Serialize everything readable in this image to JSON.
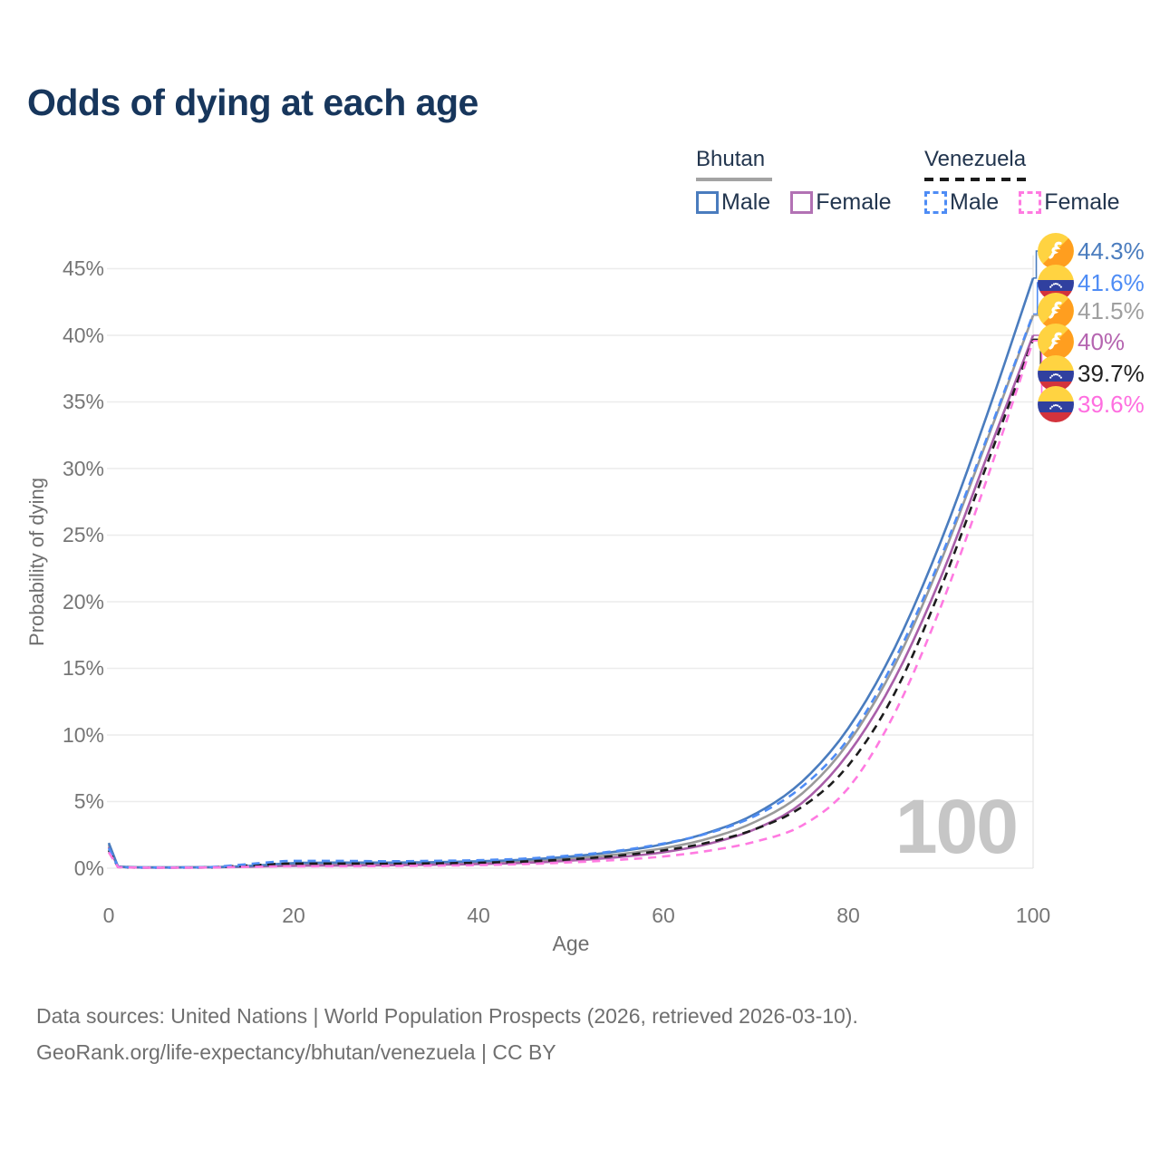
{
  "title": "Odds of dying at each age",
  "legend": {
    "groups": [
      {
        "country": "Bhutan",
        "line_style": "solid",
        "line_color": "#a3a3a3",
        "entries": [
          {
            "label": "Male",
            "color": "#4a7cbe"
          },
          {
            "label": "Female",
            "color": "#b272b4"
          }
        ]
      },
      {
        "country": "Venezuela",
        "line_style": "dashed",
        "line_color": "#1b1b1b",
        "entries": [
          {
            "label": "Male",
            "color": "#4e8cf5"
          },
          {
            "label": "Female",
            "color": "#ff7ae1"
          }
        ]
      }
    ]
  },
  "axes": {
    "y_label": "Probability of dying",
    "x_label": "Age",
    "y_ticks": [
      "45%",
      "40%",
      "35%",
      "30%",
      "25%",
      "20%",
      "15%",
      "10%",
      "5%",
      "0%"
    ],
    "x_ticks": [
      "0",
      "20",
      "40",
      "60",
      "80",
      "100"
    ]
  },
  "watermark": "100",
  "end_labels": [
    {
      "text": "44.3%",
      "flag": "bhutan",
      "series": "Bhutan Male",
      "color": "#4a7cbe"
    },
    {
      "text": "41.6%",
      "flag": "venezuela",
      "series": "Venezuela Male",
      "color": "#4e8cf5"
    },
    {
      "text": "41.5%",
      "flag": "bhutan",
      "series": "Bhutan Both sexes",
      "color": "#9f9f9f"
    },
    {
      "text": "40%",
      "flag": "bhutan",
      "series": "Bhutan Female",
      "color": "#b565b0"
    },
    {
      "text": "39.7%",
      "flag": "venezuela",
      "series": "Venezuela Both sexes",
      "color": "#222222"
    },
    {
      "text": "39.6%",
      "flag": "venezuela",
      "series": "Venezuela Female",
      "color": "#ff6ee0"
    }
  ],
  "footer": {
    "line1": "Data sources: United Nations | World Population Prospects (2026, retrieved 2026-03-10).",
    "line2": "GeoRank.org/life-expectancy/bhutan/venezuela | CC BY"
  },
  "chart_data": {
    "type": "line",
    "title": "Odds of dying at each age",
    "xlabel": "Age",
    "ylabel": "Probability of dying",
    "xlim": [
      0,
      100
    ],
    "ylim": [
      0,
      47
    ],
    "grid": "horizontal",
    "hover_age": 100,
    "x": [
      0,
      1,
      5,
      10,
      15,
      20,
      25,
      30,
      35,
      40,
      45,
      50,
      55,
      60,
      65,
      70,
      75,
      80,
      85,
      90,
      95,
      100
    ],
    "series": [
      {
        "name": "Bhutan Both sexes",
        "color": "#9a9a9a",
        "dash": false,
        "values": [
          1.75,
          0.11,
          0.055,
          0.065,
          0.13,
          0.28,
          0.31,
          0.32,
          0.36,
          0.41,
          0.52,
          0.72,
          1.03,
          1.5,
          2.25,
          3.5,
          5.6,
          9.4,
          15.2,
          23.0,
          32.1,
          41.5
        ]
      },
      {
        "name": "Bhutan Female",
        "color": "#a95fa9",
        "dash": false,
        "values": [
          1.6,
          0.1,
          0.05,
          0.06,
          0.11,
          0.18,
          0.2,
          0.22,
          0.26,
          0.31,
          0.4,
          0.57,
          0.82,
          1.2,
          1.85,
          2.95,
          4.9,
          8.6,
          14.2,
          21.8,
          30.9,
          40.0
        ]
      },
      {
        "name": "Bhutan Male",
        "color": "#4a7cbe",
        "dash": false,
        "values": [
          1.9,
          0.12,
          0.06,
          0.07,
          0.16,
          0.38,
          0.42,
          0.42,
          0.45,
          0.52,
          0.64,
          0.88,
          1.25,
          1.8,
          2.7,
          4.1,
          6.5,
          10.5,
          16.5,
          24.5,
          34.0,
          44.3
        ]
      },
      {
        "name": "Venezuela Both sexes",
        "color": "#1c1c1c",
        "dash": true,
        "values": [
          1.35,
          0.09,
          0.045,
          0.05,
          0.2,
          0.35,
          0.35,
          0.34,
          0.36,
          0.41,
          0.5,
          0.67,
          0.93,
          1.33,
          1.95,
          2.95,
          4.6,
          7.7,
          13.1,
          21.0,
          30.3,
          39.7
        ]
      },
      {
        "name": "Venezuela Male",
        "color": "#4e8cf5",
        "dash": true,
        "values": [
          1.5,
          0.1,
          0.05,
          0.06,
          0.3,
          0.55,
          0.55,
          0.52,
          0.55,
          0.6,
          0.72,
          0.95,
          1.3,
          1.85,
          2.65,
          3.95,
          6.1,
          9.7,
          15.6,
          23.3,
          32.3,
          41.6
        ]
      },
      {
        "name": "Venezuela Female",
        "color": "#ff7ae1",
        "dash": true,
        "values": [
          1.2,
          0.08,
          0.04,
          0.045,
          0.1,
          0.14,
          0.15,
          0.16,
          0.19,
          0.23,
          0.31,
          0.44,
          0.62,
          0.88,
          1.32,
          2.0,
          3.2,
          6.0,
          11.6,
          19.6,
          29.2,
          39.6
        ]
      }
    ]
  }
}
